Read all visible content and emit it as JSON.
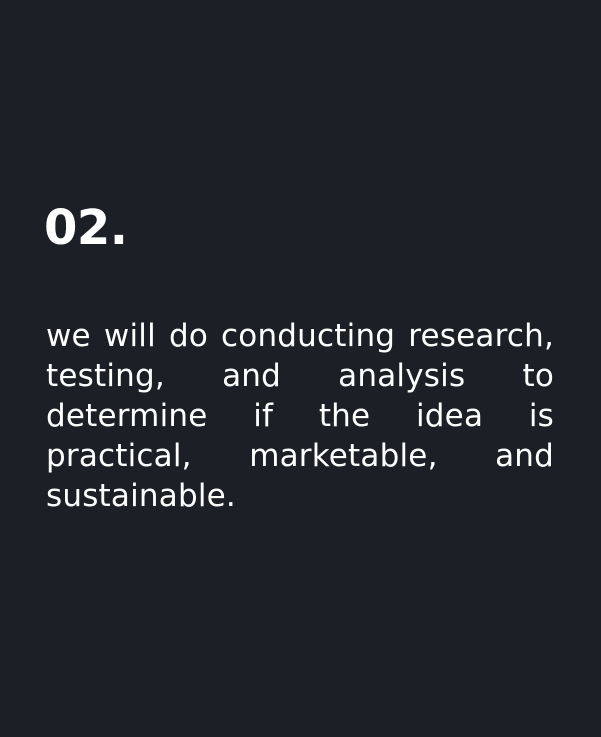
{
  "step": {
    "number": "02.",
    "description": "we will do conducting research, testing, and analysis to determine if the idea is practical, marketable, and sustainable."
  },
  "colors": {
    "background": "#1c2026",
    "text": "#ffffff"
  }
}
